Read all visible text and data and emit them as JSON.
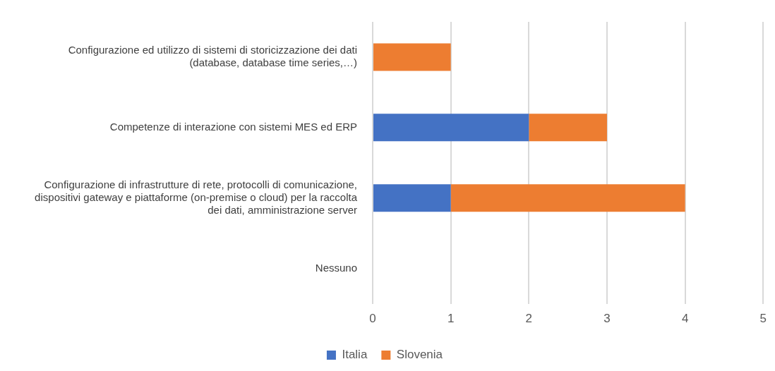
{
  "chart_data": {
    "type": "bar",
    "orientation": "horizontal",
    "stacked": true,
    "categories": [
      "Configurazione ed utilizzo di sistemi di storicizzazione dei dati (database, database time series,…)",
      "Competenze di interazione con sistemi MES ed ERP",
      "Configurazione di infrastrutture di rete, protocolli di comunicazione, dispositivi gateway e piattaforme (on-premise o cloud) per la raccolta dei dati, amministrazione server",
      "Nessuno"
    ],
    "series": [
      {
        "name": "Italia",
        "color": "#4472c4",
        "values": [
          0,
          2,
          1,
          0
        ]
      },
      {
        "name": "Slovenia",
        "color": "#ed7d31",
        "values": [
          1,
          1,
          3,
          0
        ]
      }
    ],
    "xlim": [
      0,
      5
    ],
    "xticks": [
      0,
      1,
      2,
      3,
      4,
      5
    ],
    "grid": "x",
    "legend": "bottom"
  }
}
